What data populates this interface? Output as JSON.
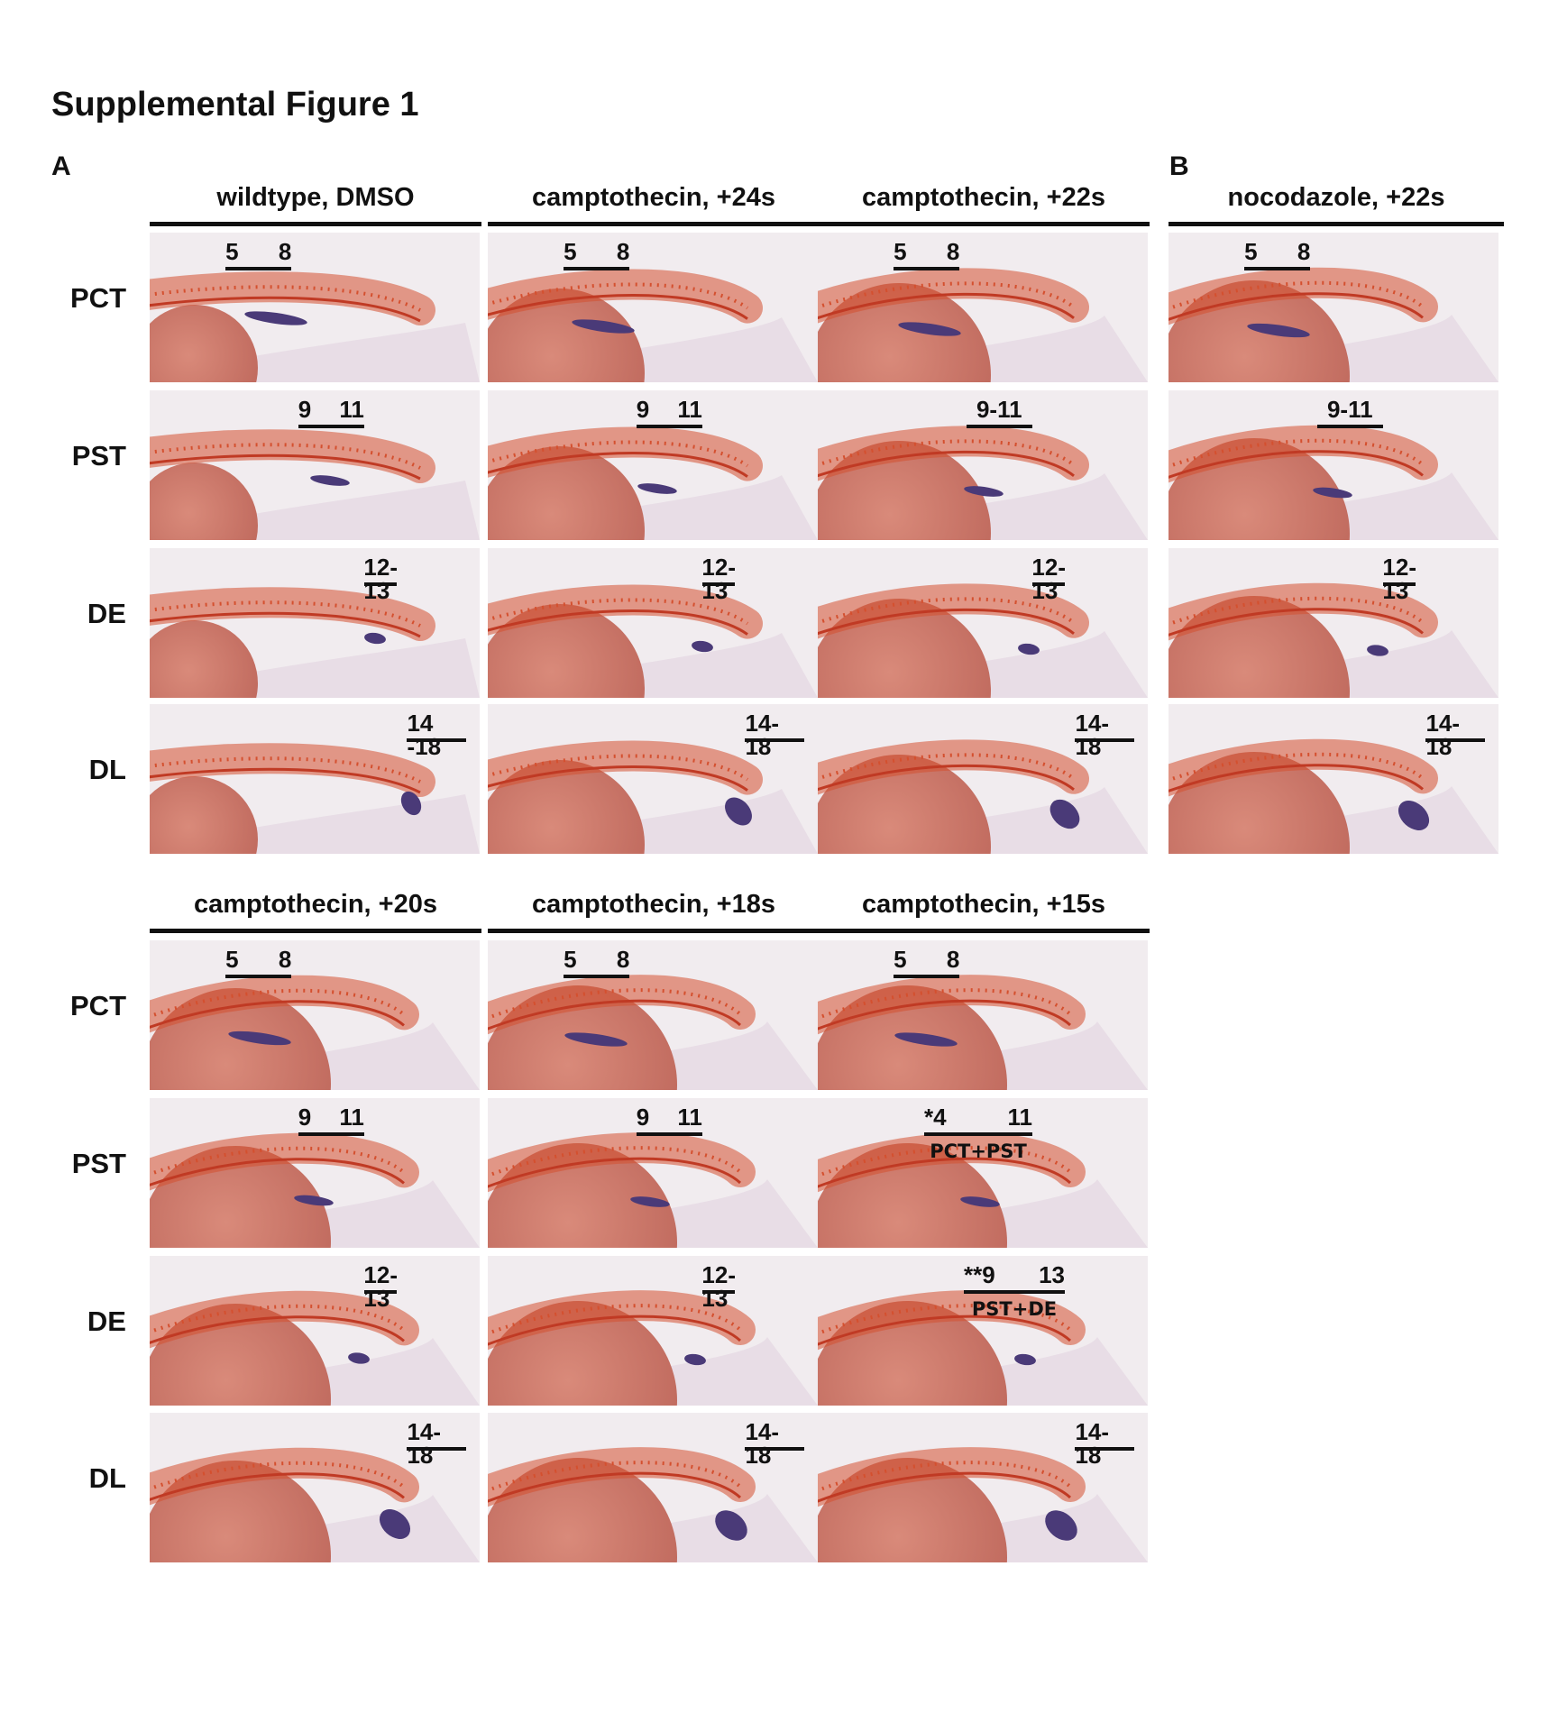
{
  "figure_title": "Supplemental Figure 1",
  "panels": {
    "A": "A",
    "B": "B"
  },
  "row_labels": [
    "PCT",
    "PST",
    "DE",
    "DL"
  ],
  "top_headers": [
    "wildtype, DMSO",
    "camptothecin, +24s",
    "camptothecin, +22s",
    "nocodazole, +22s"
  ],
  "bottom_headers": [
    "camptothecin, +20s",
    "camptothecin, +18s",
    "camptothecin, +15s"
  ],
  "segment_labels": {
    "top": [
      [
        [
          "5",
          "8"
        ],
        [
          "9",
          "11"
        ],
        [
          "12-13"
        ],
        [
          "14 -18"
        ]
      ],
      [
        [
          "5",
          "8"
        ],
        [
          "9",
          "11"
        ],
        [
          "12-13"
        ],
        [
          "14-18"
        ]
      ],
      [
        [
          "5",
          "8"
        ],
        [
          "9-11"
        ],
        [
          "12-13"
        ],
        [
          "14-18"
        ]
      ],
      [
        [
          "5",
          "8"
        ],
        [
          "9-11"
        ],
        [
          "12-13"
        ],
        [
          "14-18"
        ]
      ]
    ],
    "bottom": [
      [
        [
          "5",
          "8"
        ],
        [
          "9",
          "11"
        ],
        [
          "12-13"
        ],
        [
          "14-18"
        ]
      ],
      [
        [
          "5",
          "8"
        ],
        [
          "9",
          "11"
        ],
        [
          "12-13"
        ],
        [
          "14-18"
        ]
      ],
      [
        [
          "5",
          "8"
        ],
        [
          "*4",
          "11"
        ],
        [
          "**9",
          "13"
        ],
        [
          "14-18"
        ]
      ]
    ],
    "fused": {
      "pct_pst": "PCT+PST",
      "pst_de": "PST+DE"
    }
  },
  "colors": {
    "somite_stain": "#d4502f",
    "pronephros_stain": "#4a3a78",
    "yolk": "#c06a5e",
    "background": "#f1ecef"
  }
}
